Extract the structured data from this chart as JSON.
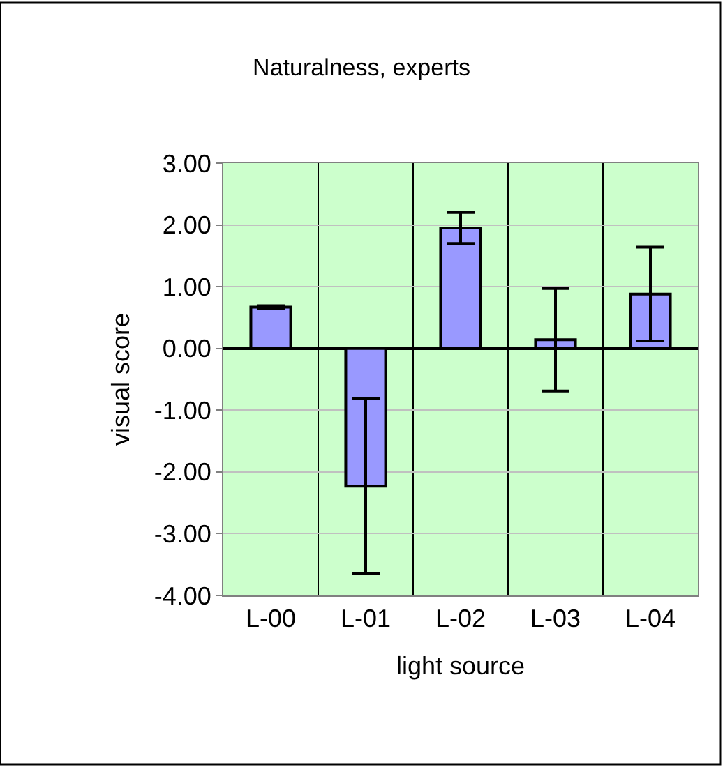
{
  "chart_data": {
    "type": "bar",
    "title": "Naturalness, experts",
    "xlabel": "light source",
    "ylabel": "visual score",
    "categories": [
      "L-00",
      "L-01",
      "L-02",
      "L-03",
      "L-04"
    ],
    "values": [
      0.67,
      -2.23,
      1.95,
      0.14,
      0.88
    ],
    "errors": [
      0.02,
      1.42,
      0.25,
      0.83,
      0.76
    ],
    "color": "#9999ff",
    "ylim": [
      -4,
      3
    ],
    "yticks": [
      {
        "value": -4,
        "label": "-4.00"
      },
      {
        "value": -3,
        "label": "-3.00"
      },
      {
        "value": -2,
        "label": "-2.00"
      },
      {
        "value": -1,
        "label": "-1.00"
      },
      {
        "value": 0,
        "label": "0.00"
      },
      {
        "value": 1,
        "label": "1.00"
      },
      {
        "value": 2,
        "label": "2.00"
      },
      {
        "value": 3,
        "label": "3.00"
      }
    ],
    "grid": true
  }
}
